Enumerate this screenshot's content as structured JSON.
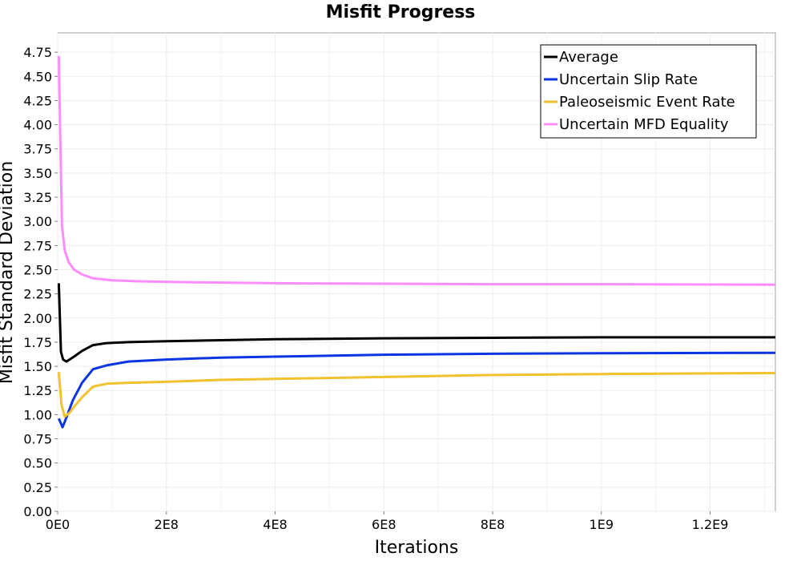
{
  "chart_data": {
    "type": "line",
    "title": "Misfit Progress",
    "xlabel": "Iterations",
    "ylabel": "Misfit Standard Deviation",
    "xlim": [
      0,
      1320000000
    ],
    "ylim": [
      0,
      4.95
    ],
    "x_ticks": [
      {
        "value": 0,
        "label": "0E0"
      },
      {
        "value": 200000000,
        "label": "2E8"
      },
      {
        "value": 400000000,
        "label": "4E8"
      },
      {
        "value": 600000000,
        "label": "6E8"
      },
      {
        "value": 800000000,
        "label": "8E8"
      },
      {
        "value": 1000000000,
        "label": "1E9"
      },
      {
        "value": 1200000000,
        "label": "1.2E9"
      }
    ],
    "y_ticks": [
      {
        "value": 0,
        "label": "0.00"
      },
      {
        "value": 0.25,
        "label": "0.25"
      },
      {
        "value": 0.5,
        "label": "0.50"
      },
      {
        "value": 0.75,
        "label": "0.75"
      },
      {
        "value": 1.0,
        "label": "1.00"
      },
      {
        "value": 1.25,
        "label": "1.25"
      },
      {
        "value": 1.5,
        "label": "1.50"
      },
      {
        "value": 1.75,
        "label": "1.75"
      },
      {
        "value": 2.0,
        "label": "2.00"
      },
      {
        "value": 2.25,
        "label": "2.25"
      },
      {
        "value": 2.5,
        "label": "2.50"
      },
      {
        "value": 2.75,
        "label": "2.75"
      },
      {
        "value": 3.0,
        "label": "3.00"
      },
      {
        "value": 3.25,
        "label": "3.25"
      },
      {
        "value": 3.5,
        "label": "3.50"
      },
      {
        "value": 3.75,
        "label": "3.75"
      },
      {
        "value": 4.0,
        "label": "4.00"
      },
      {
        "value": 4.25,
        "label": "4.25"
      },
      {
        "value": 4.5,
        "label": "4.50"
      },
      {
        "value": 4.75,
        "label": "4.75"
      }
    ],
    "grid": true,
    "legend_position": "top-right",
    "series": [
      {
        "name": "Average",
        "color": "#000000",
        "points": [
          [
            2000000,
            2.36
          ],
          [
            6000000,
            1.65
          ],
          [
            10000000,
            1.57
          ],
          [
            16000000,
            1.55
          ],
          [
            30000000,
            1.6
          ],
          [
            45000000,
            1.66
          ],
          [
            65000000,
            1.72
          ],
          [
            90000000,
            1.74
          ],
          [
            130000000,
            1.75
          ],
          [
            200000000,
            1.76
          ],
          [
            300000000,
            1.77
          ],
          [
            400000000,
            1.78
          ],
          [
            600000000,
            1.79
          ],
          [
            800000000,
            1.795
          ],
          [
            1000000000,
            1.8
          ],
          [
            1320000000,
            1.8
          ]
        ]
      },
      {
        "name": "Uncertain Slip Rate",
        "color": "#0a35e0",
        "points": [
          [
            2000000,
            0.96
          ],
          [
            9000000,
            0.87
          ],
          [
            16000000,
            0.97
          ],
          [
            28000000,
            1.15
          ],
          [
            45000000,
            1.33
          ],
          [
            65000000,
            1.47
          ],
          [
            90000000,
            1.51
          ],
          [
            130000000,
            1.55
          ],
          [
            200000000,
            1.57
          ],
          [
            300000000,
            1.59
          ],
          [
            400000000,
            1.6
          ],
          [
            600000000,
            1.62
          ],
          [
            800000000,
            1.63
          ],
          [
            1000000000,
            1.635
          ],
          [
            1320000000,
            1.64
          ]
        ]
      },
      {
        "name": "Paleoseismic Event Rate",
        "color": "#f2c12e",
        "points": [
          [
            2000000,
            1.44
          ],
          [
            7000000,
            1.1
          ],
          [
            13000000,
            0.98
          ],
          [
            22000000,
            1.02
          ],
          [
            30000000,
            1.08
          ],
          [
            45000000,
            1.18
          ],
          [
            65000000,
            1.29
          ],
          [
            90000000,
            1.32
          ],
          [
            130000000,
            1.33
          ],
          [
            200000000,
            1.34
          ],
          [
            300000000,
            1.36
          ],
          [
            400000000,
            1.37
          ],
          [
            600000000,
            1.39
          ],
          [
            800000000,
            1.41
          ],
          [
            1000000000,
            1.42
          ],
          [
            1320000000,
            1.43
          ]
        ]
      },
      {
        "name": "Uncertain MFD Equality",
        "color": "#ff8cff",
        "points": [
          [
            2000000,
            4.71
          ],
          [
            5000000,
            3.8
          ],
          [
            8000000,
            2.95
          ],
          [
            13000000,
            2.7
          ],
          [
            20000000,
            2.58
          ],
          [
            30000000,
            2.5
          ],
          [
            45000000,
            2.45
          ],
          [
            65000000,
            2.41
          ],
          [
            100000000,
            2.39
          ],
          [
            150000000,
            2.38
          ],
          [
            250000000,
            2.37
          ],
          [
            400000000,
            2.36
          ],
          [
            600000000,
            2.355
          ],
          [
            800000000,
            2.35
          ],
          [
            1000000000,
            2.35
          ],
          [
            1320000000,
            2.345
          ]
        ]
      }
    ]
  }
}
